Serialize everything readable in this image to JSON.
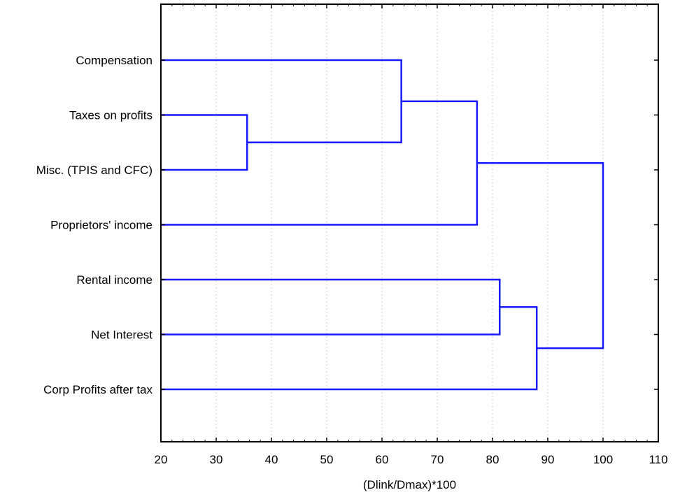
{
  "chart_data": {
    "type": "dendrogram",
    "title": "",
    "xlabel": "(Dlink/Dmax)*100",
    "ylabel": "",
    "xlim": [
      20,
      110
    ],
    "xticks": [
      20,
      30,
      40,
      50,
      60,
      70,
      80,
      90,
      100,
      110
    ],
    "grid": "vertical dashed",
    "line_color": "#1a1aff",
    "leaves": [
      "Compensation",
      "Taxes on profits",
      "Misc. (TPIS and CFC)",
      "Proprietors' income",
      "Rental income",
      "Net Interest",
      "Corp Profits after tax"
    ],
    "merges": [
      {
        "left": "Taxes on profits",
        "right": "Misc. (TPIS and CFC)",
        "height": 35.6
      },
      {
        "left": "Compensation",
        "right": "Taxes on profits + Misc. (TPIS and CFC)",
        "height": 63.5
      },
      {
        "left": "Compensation + Taxes on profits + Misc. (TPIS and CFC)",
        "right": "Proprietors' income",
        "height": 77.2
      },
      {
        "left": "Rental income",
        "right": "Net Interest",
        "height": 81.3
      },
      {
        "left": "Rental income + Net Interest",
        "right": "Corp Profits after tax",
        "height": 88.0
      },
      {
        "left": "Compensation + Taxes on profits + Misc. (TPIS and CFC) + Proprietors' income",
        "right": "Rental income + Net Interest + Corp Profits after tax",
        "height": 100.0
      }
    ]
  }
}
